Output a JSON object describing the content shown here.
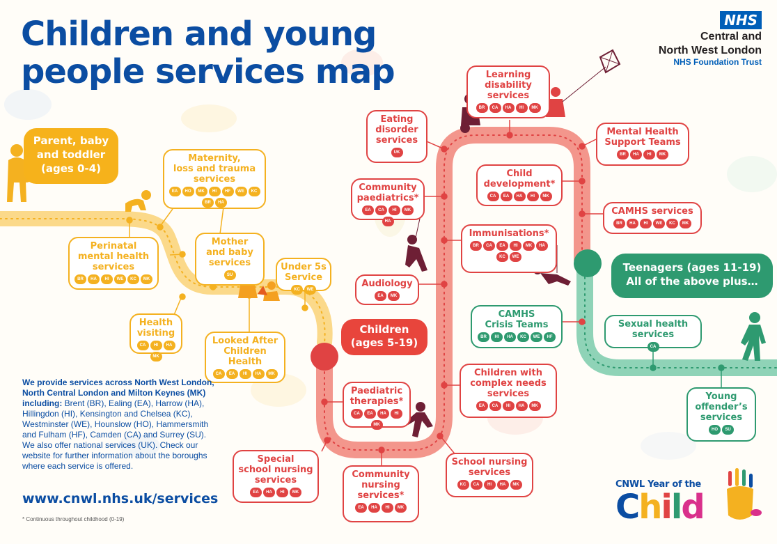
{
  "title": {
    "line1": "Children and young",
    "line2": "people services map"
  },
  "nhs": {
    "badge": "NHS",
    "line1": "Central and",
    "line2": "North West London",
    "line3": "NHS Foundation Trust"
  },
  "stages": {
    "parent": {
      "l1": "Parent, baby",
      "l2": "and toddler",
      "l3": "(ages 0-4)"
    },
    "children": {
      "l1": "Children",
      "l2": "(ages 5-19)"
    },
    "teen": {
      "l1": "Teenagers (ages 11-19)",
      "l2": "All of the above plus…"
    }
  },
  "services": [
    {
      "key": "maternity",
      "name": "Maternity,\nloss and trauma\nservices",
      "codes": [
        "EA",
        "HO",
        "MK",
        "HI",
        "HF",
        "WE",
        "KC",
        "BR",
        "HA"
      ]
    },
    {
      "key": "perinatal",
      "name": "Perinatal\nmental health\nservices",
      "codes": [
        "BR",
        "HA",
        "HI",
        "WE",
        "KC",
        "MK"
      ]
    },
    {
      "key": "mother-baby",
      "name": "Mother\nand baby\nservices",
      "codes": [
        "SU"
      ]
    },
    {
      "key": "under5s",
      "name": "Under 5s\nService",
      "codes": [
        "KC",
        "WE"
      ]
    },
    {
      "key": "health-visiting",
      "name": "Health\nvisiting",
      "codes": [
        "CA",
        "HI",
        "HA",
        "MK"
      ]
    },
    {
      "key": "looked-after",
      "name": "Looked After\nChildren\nHealth",
      "codes": [
        "CA",
        "EA",
        "HI",
        "HA",
        "MK"
      ]
    },
    {
      "key": "eating-disorder",
      "name": "Eating\ndisorder\nservices",
      "codes": [
        "UK"
      ]
    },
    {
      "key": "learning-disability",
      "name": "Learning\ndisability\nservices",
      "codes": [
        "BR",
        "CA",
        "HA",
        "HI",
        "MK"
      ]
    },
    {
      "key": "community-paed",
      "name": "Community\npaediatrics*",
      "codes": [
        "EA",
        "CA",
        "HI",
        "MK",
        "HA"
      ]
    },
    {
      "key": "child-development",
      "name": "Child\ndevelopment*",
      "codes": [
        "CA",
        "EA",
        "HA",
        "HI",
        "MK"
      ]
    },
    {
      "key": "mhst",
      "name": "Mental Health\nSupport Teams",
      "codes": [
        "BR",
        "HA",
        "HI",
        "MK"
      ]
    },
    {
      "key": "camhs",
      "name": "CAMHS services",
      "codes": [
        "BR",
        "HA",
        "HI",
        "WE",
        "KC",
        "MK"
      ]
    },
    {
      "key": "immunisations",
      "name": "Immunisations*",
      "codes": [
        "BR",
        "CA",
        "EA",
        "HI",
        "MK",
        "HA",
        "KC",
        "WE"
      ]
    },
    {
      "key": "audiology",
      "name": "Audiology",
      "codes": [
        "EA",
        "MK"
      ]
    },
    {
      "key": "camhs-crisis",
      "name": "CAMHS\nCrisis Teams",
      "codes": [
        "BR",
        "HI",
        "HA",
        "KC",
        "WE",
        "HF"
      ]
    },
    {
      "key": "sexual-health",
      "name": "Sexual health\nservices",
      "codes": [
        "CA"
      ]
    },
    {
      "key": "complex-needs",
      "name": "Children with\ncomplex needs\nservices",
      "codes": [
        "EA",
        "CA",
        "HI",
        "HA",
        "MK"
      ]
    },
    {
      "key": "paed-therapies",
      "name": "Paediatric\ntherapies*",
      "codes": [
        "CA",
        "EA",
        "HA",
        "HI",
        "MK"
      ]
    },
    {
      "key": "young-offender",
      "name": "Young\noffender’s\nservices",
      "codes": [
        "HO",
        "SU"
      ]
    },
    {
      "key": "special-school",
      "name": "Special\nschool nursing\nservices",
      "codes": [
        "EA",
        "HA",
        "HI",
        "MK"
      ]
    },
    {
      "key": "community-nursing",
      "name": "Community\nnursing\nservices*",
      "codes": [
        "EA",
        "HA",
        "HI",
        "MK"
      ]
    },
    {
      "key": "school-nursing",
      "name": "School nursing\nservices",
      "codes": [
        "KC",
        "CA",
        "HI",
        "HA",
        "MK"
      ]
    }
  ],
  "info": {
    "bold": "We provide services across North West London, North Central London and Milton Keynes (MK) including:",
    "text": " Brent (BR), Ealing (EA), Harrow (HA), Hillingdon (HI), Kensington and Chelsea (KC), Westminster (WE), Hounslow (HO), Hammersmith and Fulham (HF), Camden (CA) and Surrey (SU).  We also offer national services (UK). Check our website for further information about the boroughs where each service is offered."
  },
  "url": "www.cnwl.nhs.uk/services",
  "footnote": "* Continuous throughout childhood (0-19)",
  "year": {
    "line1": "CNWL Year of the",
    "line2": "Child"
  },
  "colors": {
    "blue": "#0b4da2",
    "yellow": "#f4b120",
    "red": "#e04343",
    "green": "#2e9a70",
    "nhs": "#005eb8"
  },
  "icons": [
    "toddler-icon",
    "parent-icon",
    "crawling-baby-icon",
    "mother-and-baby-icon",
    "climbing-child-icon",
    "child-with-kite-icon",
    "swinging-child-icon",
    "running-child-icon",
    "walking-teen-icon",
    "kite-icon",
    "handprint-icon"
  ]
}
